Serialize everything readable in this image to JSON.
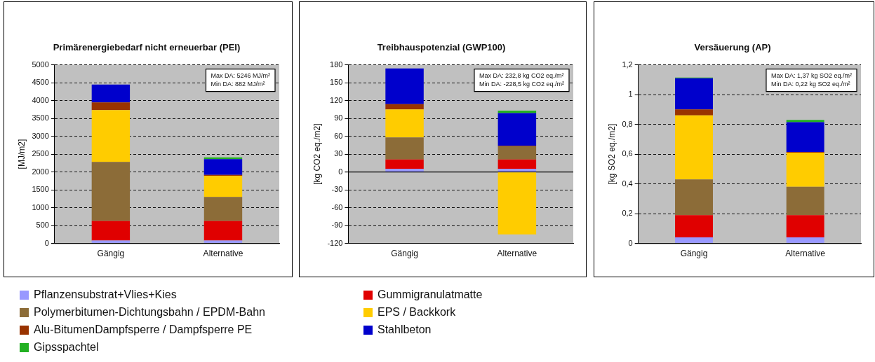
{
  "chart_data": [
    {
      "type": "bar",
      "stacked": true,
      "title": "Primärenergiebedarf nicht erneuerbar (PEI)",
      "ylabel": "[MJ/m2]",
      "categories": [
        "Gängig",
        "Alternative"
      ],
      "ylim": [
        0,
        5000
      ],
      "yticks": [
        0,
        500,
        1000,
        1500,
        2000,
        2500,
        3000,
        3500,
        4000,
        4500,
        5000
      ],
      "grid": "y",
      "legend": "bottom",
      "annotations": [
        "Max DA: 5246 MJ/m²",
        "Min DA: 882 MJ/m²"
      ],
      "series": [
        {
          "name": "Pflanzensubstrat+Vlies+Kies",
          "color": "#9999ff",
          "values": [
            80,
            80
          ]
        },
        {
          "name": "Gummigranulatmatte",
          "color": "#e00000",
          "values": [
            550,
            550
          ]
        },
        {
          "name": "Polymerbitumen-Dichtungsbahn / EPDM-Bahn",
          "color": "#8c6c38",
          "values": [
            1650,
            670
          ]
        },
        {
          "name": "EPS / Backkork",
          "color": "#ffcc00",
          "values": [
            1450,
            590
          ]
        },
        {
          "name": "Alu-BitumenDampfsperre / Dampfsperre PE",
          "color": "#993300",
          "values": [
            220,
            30
          ]
        },
        {
          "name": "Stahlbeton",
          "color": "#0000cc",
          "values": [
            500,
            440
          ]
        },
        {
          "name": "Gipsspachtel",
          "color": "#22b022",
          "values": [
            0,
            50
          ]
        }
      ]
    },
    {
      "type": "bar",
      "stacked": true,
      "title": "Treibhauspotenzial (GWP100)",
      "ylabel": "[kg CO2 eq./m2]",
      "categories": [
        "Gängig",
        "Alternative"
      ],
      "ylim": [
        -120,
        180
      ],
      "yticks": [
        -120,
        -90,
        -60,
        -30,
        0,
        30,
        60,
        90,
        120,
        150,
        180
      ],
      "grid": "y",
      "annotations": [
        "Max DA: 232,8 kg CO2 eq./m²",
        "Min DA: -228,5 kg CO2 eq./m²"
      ],
      "series": [
        {
          "color": "#9999ff",
          "values": [
            5,
            5
          ]
        },
        {
          "color": "#e00000",
          "values": [
            16,
            16
          ]
        },
        {
          "color": "#8c6c38",
          "values": [
            37,
            22
          ]
        },
        {
          "color": "#ffcc00",
          "values": [
            47,
            -105
          ]
        },
        {
          "color": "#993300",
          "values": [
            9,
            1
          ]
        },
        {
          "color": "#0000cc",
          "values": [
            60,
            55
          ]
        },
        {
          "color": "#22b022",
          "values": [
            0,
            4
          ]
        }
      ]
    },
    {
      "type": "bar",
      "stacked": true,
      "title": "Versäuerung (AP)",
      "ylabel": "[kg SO2 eq./m2]",
      "categories": [
        "Gängig",
        "Alternative"
      ],
      "ylim": [
        0,
        1.2
      ],
      "yticks": [
        0,
        {
          "value": 0.2,
          "label": "0,2"
        },
        {
          "value": 0.4,
          "label": "0,4"
        },
        {
          "value": 0.6,
          "label": "0,6"
        },
        {
          "value": 0.8,
          "label": "0,8"
        },
        1,
        {
          "value": 1.2,
          "label": "1,2"
        }
      ],
      "grid": "y",
      "annotations": [
        "Max DA: 1,37 kg SO2 eq./m²",
        "Min DA: 0,22 kg SO2 eq./m²"
      ],
      "series": [
        {
          "color": "#9999ff",
          "values": [
            0.04,
            0.04
          ]
        },
        {
          "color": "#e00000",
          "values": [
            0.15,
            0.15
          ]
        },
        {
          "color": "#8c6c38",
          "values": [
            0.24,
            0.19
          ]
        },
        {
          "color": "#ffcc00",
          "values": [
            0.43,
            0.23
          ]
        },
        {
          "color": "#993300",
          "values": [
            0.04,
            0.005
          ]
        },
        {
          "color": "#0000cc",
          "values": [
            0.21,
            0.2
          ]
        },
        {
          "color": "#22b022",
          "values": [
            0.005,
            0.015
          ]
        }
      ]
    }
  ]
}
